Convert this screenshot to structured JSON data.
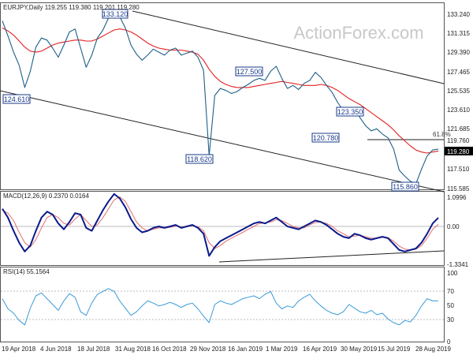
{
  "price_panel": {
    "header": "EURJPY,Daily  119.255 119.380 119.201 119.280",
    "watermark": "ActionForex.com",
    "axis_ticks": [
      "133.240",
      "131.315",
      "129.390",
      "127.465",
      "125.535",
      "123.610",
      "121.685",
      "119.760",
      "117.510",
      "115.585"
    ],
    "last_price": "119.280",
    "fib_label": "61.8%",
    "annotations": [
      {
        "text": "133.120"
      },
      {
        "text": "124.610"
      },
      {
        "text": "127.500"
      },
      {
        "text": "123.350"
      },
      {
        "text": "120.780"
      },
      {
        "text": "118.620"
      },
      {
        "text": "115.860"
      }
    ]
  },
  "macd_panel": {
    "header": "MACD(12,26,9) 0.2370 0.0164",
    "axis_ticks": [
      "1.0996",
      "0.00",
      "-1.3341"
    ]
  },
  "rsi_panel": {
    "header": "RSI(14) 55.1564",
    "axis_ticks": [
      "100",
      "70",
      "50",
      "30",
      "0"
    ]
  },
  "x_axis": {
    "labels": [
      "19 Apr 2018",
      "4 Jun 2018",
      "18 Jul 2018",
      "31 Aug 2018",
      "16 Oct 2018",
      "29 Nov 2018",
      "16 Jan 2019",
      "1 Mar 2019",
      "16 Apr 2019",
      "30 May 2019",
      "15 Jul 2019",
      "28 Aug 2019"
    ]
  },
  "chart_data": [
    {
      "type": "line",
      "title": "EURJPY,Daily",
      "ylim": [
        115.3,
        133.6
      ],
      "series": [
        {
          "name": "",
          "values": [
            132.0,
            130.5,
            128.9,
            127.6,
            125.4,
            127.0,
            129.4,
            130.3,
            130.1,
            129.3,
            128.4,
            129.6,
            130.9,
            131.2,
            129.3,
            127.4,
            128.6,
            130.3,
            131.1,
            132.3,
            133.12,
            132.4,
            131.3,
            129.6,
            128.7,
            128.1,
            128.6,
            129.2,
            128.9,
            128.6,
            129.1,
            129.3,
            128.6,
            128.8,
            129.0,
            128.4,
            127.1,
            118.62,
            124.6,
            125.3,
            125.1,
            124.8,
            125.0,
            125.4,
            125.7,
            126.1,
            126.3,
            126.1,
            127.0,
            127.5,
            126.3,
            125.3,
            125.6,
            125.2,
            125.8,
            126.1,
            126.9,
            126.4,
            125.6,
            124.9,
            123.9,
            123.1,
            122.8,
            123.35,
            122.4,
            121.6,
            121.1,
            121.3,
            120.78,
            120.4,
            119.3,
            117.2,
            116.6,
            116.1,
            115.86,
            117.3,
            118.6,
            119.2,
            119.28
          ]
        },
        {
          "name": "",
          "values": [
            131.3,
            131.0,
            130.6,
            130.0,
            129.4,
            129.0,
            128.9,
            129.0,
            129.3,
            129.6,
            129.8,
            129.9,
            130.0,
            130.1,
            130.1,
            130.0,
            130.0,
            130.2,
            130.5,
            130.8,
            131.1,
            131.2,
            131.1,
            130.9,
            130.6,
            130.2,
            129.8,
            129.5,
            129.3,
            129.2,
            129.1,
            129.1,
            129.1,
            129.0,
            128.9,
            128.7,
            128.1,
            127.2,
            126.5,
            126.0,
            125.7,
            125.5,
            125.4,
            125.4,
            125.4,
            125.5,
            125.6,
            125.7,
            125.8,
            125.9,
            126.0,
            125.9,
            125.8,
            125.7,
            125.6,
            125.6,
            125.6,
            125.7,
            125.6,
            125.4,
            125.1,
            124.7,
            124.3,
            124.0,
            123.7,
            123.3,
            122.9,
            122.5,
            122.1,
            121.7,
            121.2,
            120.6,
            120.1,
            119.6,
            119.2,
            119.0,
            118.9,
            119.0,
            119.1
          ]
        }
      ]
    },
    {
      "type": "line",
      "title": "MACD(12,26,9)",
      "ylim": [
        -1.3341,
        1.0996
      ],
      "series": [
        {
          "name": "",
          "values": [
            0.55,
            0.25,
            -0.2,
            -0.6,
            -0.9,
            -0.7,
            -0.2,
            0.25,
            0.45,
            0.35,
            0.05,
            -0.15,
            0.1,
            0.4,
            0.35,
            -0.1,
            -0.2,
            0.15,
            0.5,
            0.8,
            1.05,
            0.9,
            0.6,
            0.2,
            -0.1,
            -0.25,
            -0.2,
            -0.1,
            -0.05,
            -0.1,
            -0.05,
            0.0,
            -0.1,
            -0.05,
            0.0,
            -0.1,
            -0.3,
            -1.05,
            -0.75,
            -0.55,
            -0.45,
            -0.35,
            -0.25,
            -0.15,
            -0.05,
            0.05,
            0.1,
            0.05,
            0.15,
            0.25,
            0.1,
            -0.05,
            -0.1,
            -0.15,
            -0.05,
            0.05,
            0.15,
            0.1,
            0.0,
            -0.15,
            -0.3,
            -0.4,
            -0.45,
            -0.3,
            -0.35,
            -0.45,
            -0.5,
            -0.45,
            -0.4,
            -0.45,
            -0.65,
            -0.85,
            -0.9,
            -0.85,
            -0.8,
            -0.6,
            -0.3,
            0.05,
            0.24
          ]
        },
        {
          "name": "",
          "values": [
            0.5,
            0.4,
            0.15,
            -0.25,
            -0.6,
            -0.75,
            -0.5,
            -0.1,
            0.25,
            0.35,
            0.25,
            0.05,
            0.0,
            0.2,
            0.35,
            0.15,
            -0.05,
            0.0,
            0.25,
            0.55,
            0.85,
            0.95,
            0.8,
            0.45,
            0.1,
            -0.1,
            -0.2,
            -0.15,
            -0.1,
            -0.1,
            -0.08,
            -0.04,
            -0.06,
            -0.06,
            -0.03,
            -0.06,
            -0.2,
            -0.6,
            -0.8,
            -0.7,
            -0.55,
            -0.45,
            -0.35,
            -0.25,
            -0.15,
            -0.05,
            0.05,
            0.07,
            0.1,
            0.18,
            0.15,
            0.05,
            -0.05,
            -0.1,
            -0.1,
            0.0,
            0.08,
            0.1,
            0.05,
            -0.05,
            -0.2,
            -0.3,
            -0.4,
            -0.38,
            -0.35,
            -0.4,
            -0.45,
            -0.45,
            -0.42,
            -0.43,
            -0.55,
            -0.72,
            -0.82,
            -0.85,
            -0.82,
            -0.7,
            -0.45,
            -0.15,
            0.02
          ]
        }
      ]
    },
    {
      "type": "line",
      "title": "RSI(14)",
      "ylim": [
        0,
        100
      ],
      "series": [
        {
          "name": "",
          "values": [
            58,
            44,
            38,
            28,
            22,
            45,
            62,
            66,
            58,
            50,
            42,
            55,
            65,
            60,
            40,
            35,
            52,
            64,
            68,
            72,
            68,
            55,
            45,
            35,
            40,
            48,
            55,
            52,
            48,
            50,
            53,
            50,
            46,
            50,
            52,
            44,
            34,
            25,
            50,
            55,
            52,
            50,
            54,
            58,
            60,
            62,
            58,
            64,
            68,
            52,
            44,
            48,
            46,
            55,
            60,
            64,
            55,
            48,
            42,
            38,
            36,
            40,
            50,
            45,
            40,
            38,
            42,
            36,
            38,
            30,
            25,
            22,
            28,
            26,
            35,
            48,
            58,
            55,
            55
          ]
        }
      ]
    }
  ]
}
